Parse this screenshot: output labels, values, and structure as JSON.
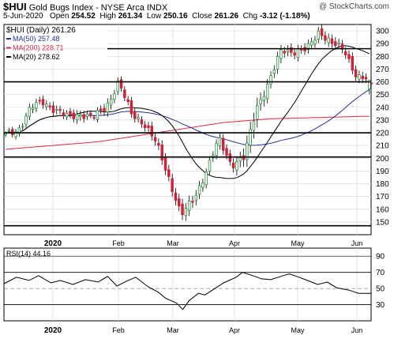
{
  "header": {
    "symbol": "$HUI",
    "name": "Gold Bugs Index - NYSE Arca INDX",
    "watermark": "@ StockCharts.com",
    "date": "5-Jun-2020",
    "open_label": "Open",
    "open": "254.52",
    "high_label": "High",
    "high": "261.34",
    "low_label": "Low",
    "low": "250.16",
    "close_label": "Close",
    "close": "261.26",
    "chg_label": "Chg",
    "chg": "-3.12 (-1.18%)"
  },
  "colors": {
    "up": "#2a8f3e",
    "down": "#d1203a",
    "wick": "#000000",
    "ma50": "#27308f",
    "ma200": "#d8294a",
    "ma20": "#000000",
    "grid": "#d8d8d8",
    "rsi": "#000000"
  },
  "chart_data": [
    {
      "type": "candlestick",
      "title": "$HUI (Daily) 261.26",
      "ylim": [
        140,
        305
      ],
      "yticks": [
        150,
        160,
        170,
        180,
        190,
        200,
        210,
        220,
        230,
        240,
        250,
        260,
        270,
        280,
        290,
        300
      ],
      "xticks": [
        "2020",
        "Feb",
        "Mar",
        "Apr",
        "May",
        "Jun"
      ],
      "legend": [
        {
          "name": "MA(50)",
          "value": "257.48",
          "color": "#27308f"
        },
        {
          "name": "MA(200)",
          "value": "228.71",
          "color": "#d8294a"
        },
        {
          "name": "MA(20)",
          "value": "278.62",
          "color": "#000000"
        }
      ],
      "hlines": [
        286,
        260,
        220,
        201,
        147
      ],
      "anchors": [
        [
          218,
          216,
          219
        ],
        [
          222,
          220,
          226
        ],
        [
          240,
          237,
          245
        ],
        [
          244,
          238,
          246
        ],
        [
          238,
          225,
          234
        ],
        [
          232,
          230,
          236
        ],
        [
          235,
          228,
          238
        ],
        [
          232,
          232,
          236
        ],
        [
          240,
          238,
          249
        ],
        [
          260,
          251,
          258
        ],
        [
          235,
          232,
          240
        ],
        [
          228,
          222,
          230
        ],
        [
          212,
          205,
          216
        ],
        [
          185,
          178,
          189
        ],
        [
          155,
          148,
          160
        ],
        [
          168,
          165,
          178
        ],
        [
          190,
          192,
          200
        ],
        [
          215,
          206,
          215
        ],
        [
          195,
          189,
          198
        ],
        [
          200,
          198,
          216
        ],
        [
          240,
          228,
          249
        ],
        [
          260,
          255,
          265
        ],
        [
          285,
          276,
          287
        ],
        [
          284,
          278,
          287
        ],
        [
          285,
          281,
          290
        ],
        [
          300,
          293,
          302
        ],
        [
          290,
          278,
          288
        ],
        [
          285,
          272,
          281
        ],
        [
          264,
          258,
          267
        ],
        [
          261,
          252,
          261
        ]
      ],
      "ma200_anchors": [
        [
          0,
          207
        ],
        [
          60,
          213
        ],
        [
          140,
          228
        ],
        [
          170,
          231
        ],
        [
          234,
          233
        ]
      ]
    },
    {
      "type": "line",
      "title": "RSI(14) 44.16",
      "ylim": [
        10,
        100
      ],
      "yticks": [
        30,
        50,
        70,
        90
      ],
      "xticks": [
        "2020",
        "Feb",
        "Mar",
        "Apr",
        "May",
        "Jun"
      ],
      "anchors": [
        [
          0,
          56
        ],
        [
          8,
          64
        ],
        [
          16,
          60
        ],
        [
          22,
          66
        ],
        [
          30,
          57
        ],
        [
          36,
          60
        ],
        [
          44,
          55
        ],
        [
          52,
          61
        ],
        [
          60,
          58
        ],
        [
          66,
          65
        ],
        [
          72,
          53
        ],
        [
          78,
          59
        ],
        [
          84,
          64
        ],
        [
          92,
          52
        ],
        [
          98,
          46
        ],
        [
          103,
          38
        ],
        [
          110,
          32
        ],
        [
          114,
          24
        ],
        [
          118,
          35
        ],
        [
          124,
          44
        ],
        [
          128,
          42
        ],
        [
          136,
          52
        ],
        [
          140,
          57
        ],
        [
          148,
          64
        ],
        [
          152,
          70
        ],
        [
          160,
          65
        ],
        [
          164,
          62
        ],
        [
          170,
          61
        ],
        [
          178,
          66
        ],
        [
          182,
          68
        ],
        [
          188,
          64
        ],
        [
          196,
          58
        ],
        [
          200,
          55
        ],
        [
          206,
          58
        ],
        [
          212,
          51
        ],
        [
          220,
          48
        ],
        [
          226,
          44
        ],
        [
          234,
          44
        ]
      ]
    }
  ],
  "rsi_tick_labels": [
    "90",
    "70",
    "50",
    "30"
  ]
}
